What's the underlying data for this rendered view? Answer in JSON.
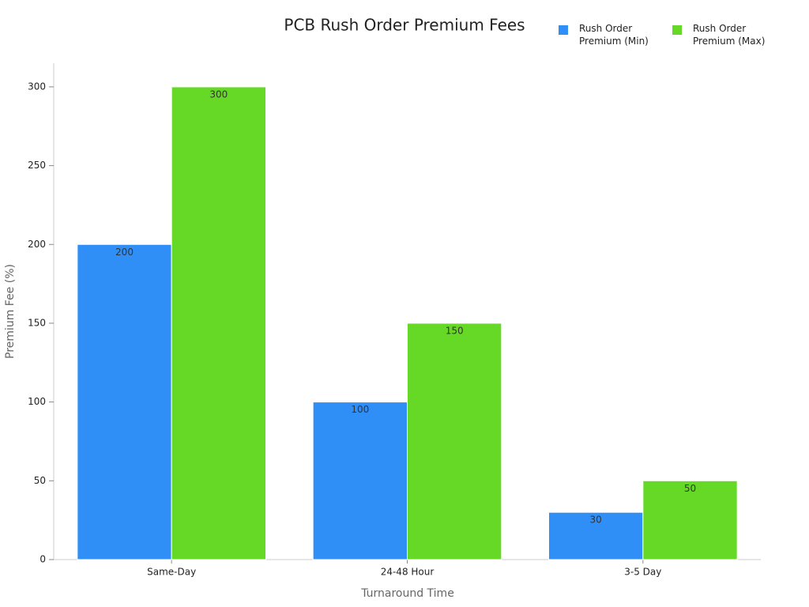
{
  "chart_data": {
    "type": "bar",
    "title": "PCB Rush Order Premium Fees",
    "x_label": "Turnaround Time",
    "y_label": "Premium Fee (%)",
    "categories": [
      "Same-Day",
      "24-48 Hour",
      "3-5 Day"
    ],
    "series": [
      {
        "name": "Rush Order Premium (Min)",
        "color": "#2f8ff6",
        "values": [
          200,
          100,
          30
        ]
      },
      {
        "name": "Rush Order Premium (Max)",
        "color": "#66d926",
        "values": [
          300,
          150,
          50
        ]
      }
    ],
    "ylim": [
      0,
      315
    ],
    "yticks": [
      0,
      50,
      100,
      150,
      200,
      250,
      300
    ],
    "grid": false,
    "legend": "top-right"
  }
}
